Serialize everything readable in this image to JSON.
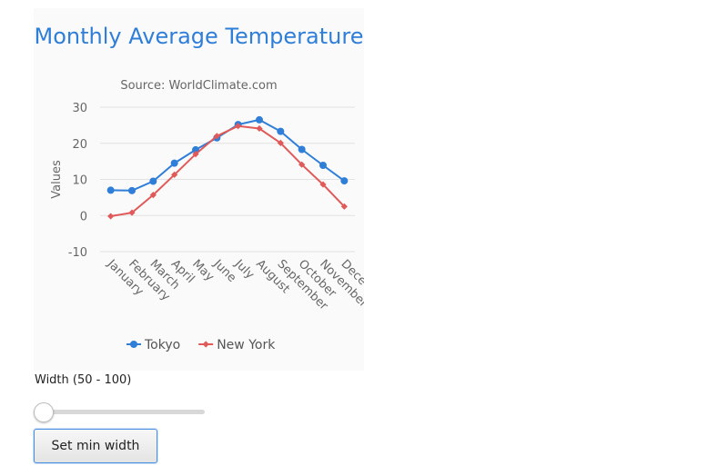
{
  "chart_data": {
    "type": "line",
    "title": "Monthly Average Temperature",
    "subtitle": "Source: WorldClimate.com",
    "ylabel": "Values",
    "ylim": [
      -10,
      30
    ],
    "yticks": [
      30,
      20,
      10,
      0,
      -10
    ],
    "categories": [
      "January",
      "February",
      "March",
      "April",
      "May",
      "June",
      "July",
      "August",
      "September",
      "October",
      "November",
      "December"
    ],
    "category_labels_shown": [
      "January",
      "February",
      "March",
      "April",
      "May",
      "June",
      "July",
      "August",
      "September",
      "October",
      "November",
      "Dece"
    ],
    "grid": true,
    "legend_position": "bottom-center",
    "series": [
      {
        "name": "Tokyo",
        "color": "#2f7ed8",
        "marker": "circle",
        "values": [
          7.0,
          6.9,
          9.5,
          14.5,
          18.2,
          21.5,
          25.2,
          26.5,
          23.3,
          18.3,
          13.9,
          9.6
        ]
      },
      {
        "name": "New York",
        "color": "#e05a5a",
        "marker": "diamond",
        "values": [
          -0.2,
          0.8,
          5.7,
          11.3,
          17.0,
          22.0,
          24.8,
          24.1,
          20.1,
          14.1,
          8.6,
          2.5
        ]
      }
    ]
  },
  "slider": {
    "label": "Width (50 - 100)",
    "value": 50,
    "min": 50,
    "max": 100
  },
  "button": {
    "label": "Set min width"
  }
}
